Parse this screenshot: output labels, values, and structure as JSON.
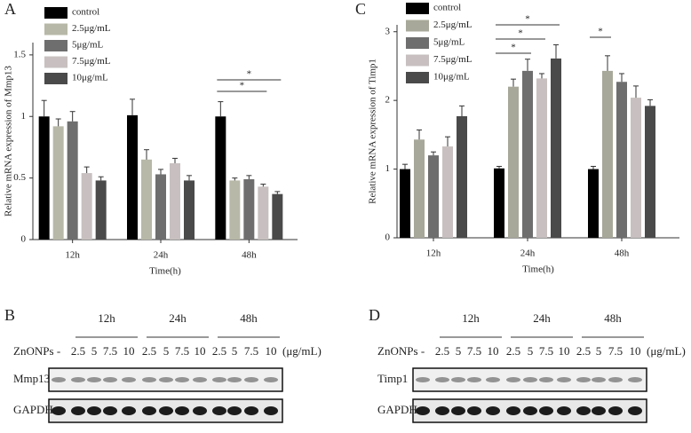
{
  "chart_data": [
    {
      "type": "bar",
      "panel": "A",
      "y_label": "Relative mRNA expression of Mmp13",
      "x_label": "Time(h)",
      "categories": [
        "12h",
        "24h",
        "48h"
      ],
      "ylim": [
        0,
        1.6
      ],
      "yticks": [
        0,
        0.5,
        1,
        1.5
      ],
      "series": [
        {
          "name": "control",
          "color": "#000000",
          "values": [
            1.0,
            1.01,
            1.0
          ],
          "errors": [
            0.13,
            0.13,
            0.12
          ]
        },
        {
          "name": "2.5μg/mL",
          "color": "#b8b8a8",
          "values": [
            0.92,
            0.65,
            0.48
          ],
          "errors": [
            0.06,
            0.08,
            0.02
          ]
        },
        {
          "name": "5μg/mL",
          "color": "#6e6e6e",
          "values": [
            0.96,
            0.53,
            0.49
          ],
          "errors": [
            0.08,
            0.04,
            0.03
          ]
        },
        {
          "name": "7.5μg/mL",
          "color": "#c8c0c0",
          "values": [
            0.54,
            0.62,
            0.43
          ],
          "errors": [
            0.05,
            0.04,
            0.02
          ]
        },
        {
          "name": "10μg/mL",
          "color": "#4a4a4a",
          "values": [
            0.48,
            0.48,
            0.37
          ],
          "errors": [
            0.03,
            0.04,
            0.02
          ]
        }
      ],
      "significance": [
        "*",
        "*"
      ]
    },
    {
      "type": "bar",
      "panel": "C",
      "y_label": "Relative mRNA expression of Timp1",
      "x_label": "Time(h)",
      "categories": [
        "12h",
        "24h",
        "48h"
      ],
      "ylim": [
        0,
        3.1
      ],
      "yticks": [
        0,
        1,
        2,
        3
      ],
      "series": [
        {
          "name": "control",
          "color": "#000000",
          "values": [
            1.0,
            1.01,
            1.0
          ],
          "errors": [
            0.07,
            0.03,
            0.04
          ]
        },
        {
          "name": "2.5μg/mL",
          "color": "#a8a89a",
          "values": [
            1.43,
            2.2,
            2.43
          ],
          "errors": [
            0.14,
            0.11,
            0.22
          ]
        },
        {
          "name": "5μg/mL",
          "color": "#6e6e6e",
          "values": [
            1.2,
            2.43,
            2.27
          ],
          "errors": [
            0.05,
            0.17,
            0.12
          ]
        },
        {
          "name": "7.5μg/mL",
          "color": "#c8c0c0",
          "values": [
            1.33,
            2.32,
            2.04
          ],
          "errors": [
            0.14,
            0.07,
            0.17
          ]
        },
        {
          "name": "10μg/mL",
          "color": "#4a4a4a",
          "values": [
            1.77,
            2.61,
            1.92
          ],
          "errors": [
            0.15,
            0.2,
            0.09
          ]
        }
      ],
      "significance": [
        "*",
        "*",
        "*",
        "*"
      ]
    }
  ],
  "blots": [
    {
      "panel": "B",
      "times": [
        "12h",
        "24h",
        "48h"
      ],
      "treatment": "ZnONPs",
      "lanes": [
        "-",
        "2.5",
        "5",
        "7.5",
        "10",
        "2.5",
        "5",
        "7.5",
        "10",
        "2.5",
        "5",
        "7.5",
        "10"
      ],
      "unit": "(μg/mL)",
      "rows": [
        "Mmp13",
        "GAPDH"
      ]
    },
    {
      "panel": "D",
      "times": [
        "12h",
        "24h",
        "48h"
      ],
      "treatment": "ZnONPs",
      "lanes": [
        "-",
        "2.5",
        "5",
        "7.5",
        "10",
        "2.5",
        "5",
        "7.5",
        "10",
        "2.5",
        "5",
        "7.5",
        "10"
      ],
      "unit": "(μg/mL)",
      "rows": [
        "Timp1",
        "GAPDH"
      ]
    }
  ]
}
